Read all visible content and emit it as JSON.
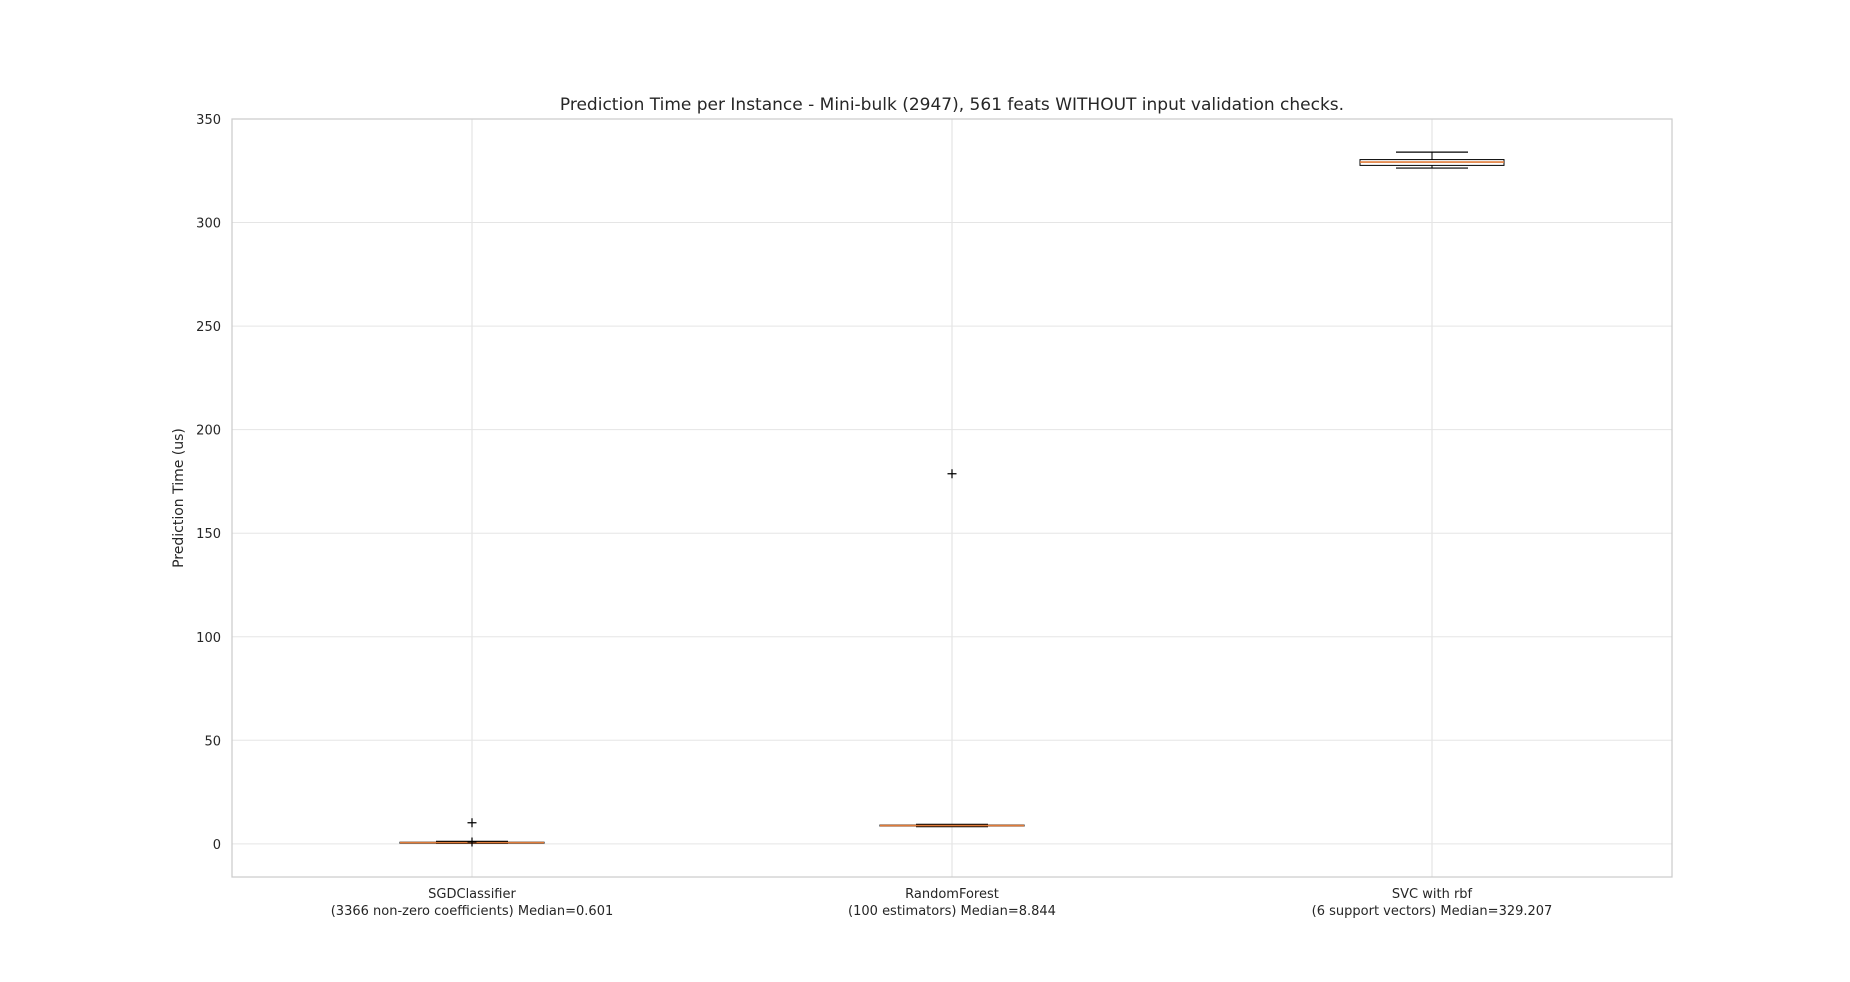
{
  "chart_data": {
    "type": "boxplot",
    "title": "Prediction Time per Instance - Mini-bulk (2947), 561 feats WITHOUT input validation checks.",
    "xlabel": "",
    "ylabel": "Prediction Time (us)",
    "ylim": [
      -16,
      350
    ],
    "yticks": [
      0,
      50,
      100,
      150,
      200,
      250,
      300,
      350
    ],
    "grid": true,
    "categories": [
      [
        "SGDClassifier",
        "(3366 non-zero coefficients) Median=0.601"
      ],
      [
        "RandomForest",
        "(100 estimators) Median=8.844"
      ],
      [
        "SVC with rbf",
        "(6 support vectors) Median=329.207"
      ]
    ],
    "boxes": [
      {
        "whisker_low": 0.3,
        "q1": 0.45,
        "median": 0.601,
        "q3": 0.8,
        "whisker_high": 1.2,
        "outliers": [
          10.2,
          0.9
        ]
      },
      {
        "whisker_low": 8.3,
        "q1": 8.6,
        "median": 8.844,
        "q3": 9.1,
        "whisker_high": 9.4,
        "outliers": [
          178.7
        ]
      },
      {
        "whisker_low": 326.3,
        "q1": 327.6,
        "median": 329.207,
        "q3": 330.4,
        "whisker_high": 334.0,
        "outliers": []
      }
    ],
    "colors": {
      "median": "#e07b39",
      "box_edge": "#000000",
      "grid": "#e5e5e5",
      "axes_edge": "#cccccc"
    }
  }
}
